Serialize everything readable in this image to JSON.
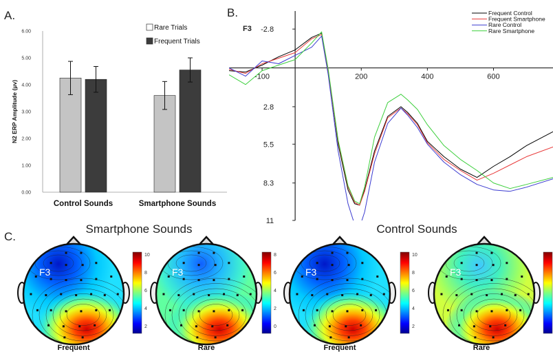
{
  "panels": {
    "a": "A.",
    "b": "B.",
    "c": "C."
  },
  "chart_data": [
    {
      "type": "bar",
      "ylabel": "N2 ERP Amplitude (μv)",
      "ylim": [
        0,
        6
      ],
      "yticks": [
        "0.00",
        "1.00",
        "2.00",
        "3.00",
        "4.00",
        "5.00",
        "6.00"
      ],
      "categories": [
        "Control Sounds",
        "Smartphone Sounds"
      ],
      "series": [
        {
          "name": "Rare Trials",
          "color": "#c4c4c4",
          "values": [
            4.25,
            3.6
          ],
          "errors": [
            0.62,
            0.52
          ]
        },
        {
          "name": "Frequent Trials",
          "color": "#3c3c3c",
          "values": [
            4.2,
            4.55
          ],
          "errors": [
            0.48,
            0.45
          ]
        }
      ],
      "legend": "top-right"
    },
    {
      "type": "line",
      "title": "F3",
      "xlim": [
        -200,
        780
      ],
      "ylim": [
        -4.2,
        11
      ],
      "y_inverted": true,
      "xticks": [
        "-100",
        "200",
        "400",
        "600"
      ],
      "yticks": [
        "-2.8",
        "2.8",
        "5.5",
        "8.3",
        "11"
      ],
      "series": [
        {
          "name": "Frequent Control",
          "color": "#000000",
          "x": [
            -200,
            -150,
            -100,
            -50,
            0,
            50,
            80,
            100,
            130,
            160,
            180,
            195,
            210,
            240,
            280,
            320,
            340,
            370,
            400,
            450,
            500,
            550,
            600,
            650,
            700,
            780
          ],
          "y": [
            0.2,
            0.3,
            -0.2,
            -0.8,
            -1.3,
            -2.2,
            -2.5,
            0.2,
            5.5,
            8.8,
            9.8,
            9.9,
            8.8,
            6,
            3.5,
            2.8,
            3.2,
            4,
            5.3,
            6.4,
            7.3,
            7.9,
            7.1,
            6.4,
            5.6,
            4.6
          ]
        },
        {
          "name": "Frequent Smartphone",
          "color": "#e83a3a",
          "x": [
            -200,
            -150,
            -100,
            -50,
            0,
            50,
            80,
            100,
            130,
            160,
            180,
            195,
            210,
            240,
            280,
            320,
            340,
            370,
            400,
            450,
            500,
            550,
            600,
            650,
            700,
            780
          ],
          "y": [
            0.1,
            0.4,
            -0.3,
            -0.7,
            -1.1,
            -2.1,
            -2.4,
            0.3,
            5.3,
            8.6,
            9.7,
            9.9,
            8.9,
            6.2,
            3.6,
            2.9,
            3.3,
            4.1,
            5.4,
            6.6,
            7.4,
            8.1,
            7.6,
            7.0,
            6.4,
            5.7
          ]
        },
        {
          "name": "Rare Control",
          "color": "#3a3ad0",
          "x": [
            -200,
            -150,
            -100,
            -50,
            0,
            50,
            80,
            100,
            130,
            160,
            180,
            195,
            210,
            240,
            280,
            320,
            340,
            370,
            400,
            450,
            500,
            550,
            600,
            650,
            700,
            780
          ],
          "y": [
            0,
            0.6,
            -0.5,
            -0.3,
            -0.9,
            -1.5,
            -2.3,
            0.5,
            6,
            9.8,
            11.3,
            11.5,
            10.4,
            6.8,
            4,
            2.9,
            3.4,
            4.3,
            5.5,
            6.8,
            7.7,
            8.4,
            8.8,
            8.9,
            8.6,
            8.0
          ]
        },
        {
          "name": "Rare Smartphone",
          "color": "#3ccf3c",
          "x": [
            -200,
            -150,
            -100,
            -50,
            0,
            50,
            80,
            100,
            130,
            160,
            180,
            195,
            210,
            240,
            280,
            320,
            340,
            370,
            400,
            450,
            500,
            550,
            600,
            650,
            700,
            780
          ],
          "y": [
            0.5,
            1.2,
            0.2,
            -0.2,
            -0.6,
            -1.8,
            -2.6,
            0.1,
            5.2,
            8.5,
            9.6,
            9.8,
            8.6,
            5,
            2.5,
            1.9,
            2.3,
            3.0,
            4.1,
            5.6,
            6.6,
            7.4,
            8.3,
            8.7,
            8.4,
            7.9
          ]
        }
      ],
      "legend": "top-right"
    },
    {
      "type": "heatmap",
      "groups": [
        "Smartphone Sounds",
        "Control Sounds"
      ],
      "electrode": "F3",
      "maps": [
        {
          "label": "Frequent",
          "colorbar": [
            "10",
            "8",
            "6",
            "4",
            "2"
          ]
        },
        {
          "label": "Rare",
          "colorbar": [
            "8",
            "6",
            "4",
            "2",
            "0"
          ]
        },
        {
          "label": "Frequent",
          "colorbar": [
            "10",
            "8",
            "6",
            "4",
            "2"
          ]
        },
        {
          "label": "Rare",
          "colorbar": []
        }
      ]
    }
  ]
}
